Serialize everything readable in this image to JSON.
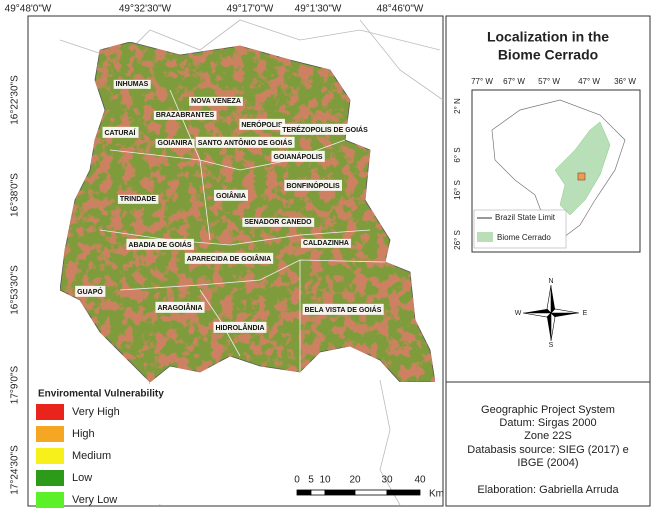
{
  "map": {
    "top_coords": [
      "49°48'0\"W",
      "49°32'30\"W",
      "49°17'0\"W",
      "49°1'30\"W",
      "48°46'0\"W"
    ],
    "left_coords": [
      "16°22'30\"S",
      "16°38'0\"S",
      "16°53'30\"S",
      "17°9'0\"S",
      "17°24'30\"S"
    ],
    "municipalities": [
      "INHUMAS",
      "NOVA VENEZA",
      "BRAZABRANTES",
      "NERÓPOLIS",
      "TERÉZOPOLIS DE GOIÁS",
      "CATURAÍ",
      "GOIANIRA",
      "SANTO ANTÔNIO DE GOIÁS",
      "GOIANÁPOLIS",
      "BONFINÓPOLIS",
      "TRINDADE",
      "GOIÂNIA",
      "SENADOR CANEDO",
      "ABADIA DE GOIÁS",
      "CALDAZINHA",
      "APARECIDA DE GOIÂNIA",
      "GUAPÓ",
      "ARAGOIÂNIA",
      "BELA VISTA DE GOIÁS",
      "HIDROLÂNDIA"
    ]
  },
  "legend": {
    "title": "Enviromental Vulnerability",
    "items": [
      {
        "label": "Very High",
        "color": "#e8241c"
      },
      {
        "label": "High",
        "color": "#f5a623"
      },
      {
        "label": "Medium",
        "color": "#f7f01a"
      },
      {
        "label": "Low",
        "color": "#2e9a1a"
      },
      {
        "label": "Very Low",
        "color": "#5cf02a"
      }
    ]
  },
  "scale": {
    "labels": [
      "0",
      "5",
      "10",
      "20",
      "30",
      "40"
    ],
    "unit": "Km"
  },
  "inset": {
    "title": [
      "Localization in the",
      "Biome Cerrado"
    ],
    "top_coords": [
      "77° W",
      "67° W",
      "57° W",
      "47° W",
      "36° W"
    ],
    "left_coords": [
      "2° N",
      "6° S",
      "16° S",
      "26° S"
    ],
    "legend": [
      "Brazil State Limit",
      "Biome Cerrado"
    ]
  },
  "compass": [
    "N",
    "E",
    "S",
    "W"
  ],
  "info": [
    "Geographic Project System",
    "Datum: Sirgas 2000",
    "Zone 22S",
    "Databasis source: SIEG (2017) e",
    "IBGE (2004)",
    "Elaboration: Gabriella Arruda"
  ]
}
